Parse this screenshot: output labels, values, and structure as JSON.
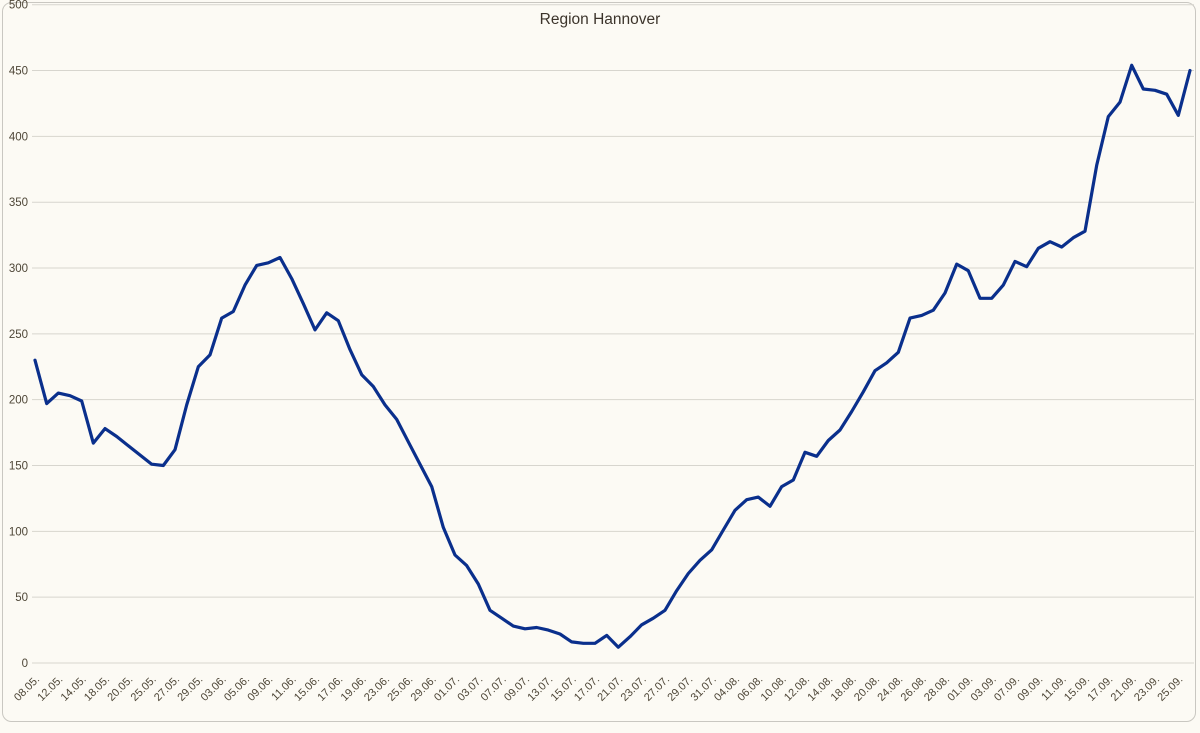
{
  "title": "Region Hannover",
  "colors": {
    "line": "#0a2f8c",
    "grid": "#d7d5ce",
    "axis_text": "#4e4637",
    "title_text": "#3c342b",
    "background": "#fcfaf4",
    "frame_border": "#c9c7c1"
  },
  "chart_data": {
    "type": "line",
    "title": "Region Hannover",
    "legend": "none",
    "grid": true,
    "ylim": [
      0,
      500
    ],
    "y_ticks": [
      0,
      50,
      100,
      150,
      200,
      250,
      300,
      350,
      400,
      450,
      500
    ],
    "x_label_every": 2,
    "x_labels": [
      "08.05.",
      "12.05.",
      "14.05.",
      "18.05.",
      "20.05.",
      "25.05.",
      "27.05.",
      "29.05.",
      "03.06.",
      "05.06.",
      "09.06.",
      "11.06.",
      "15.06.",
      "17.06.",
      "19.06.",
      "23.06.",
      "25.06.",
      "29.06.",
      "01.07.",
      "03.07.",
      "07.07.",
      "09.07.",
      "13.07.",
      "15.07.",
      "17.07.",
      "21.07.",
      "23.07.",
      "27.07.",
      "29.07.",
      "31.07.",
      "04.08.",
      "06.08.",
      "10.08.",
      "12.08.",
      "14.08.",
      "18.08.",
      "20.08.",
      "24.08.",
      "26.08.",
      "28.08.",
      "01.09.",
      "03.09.",
      "07.09.",
      "09.09.",
      "11.09.",
      "15.09.",
      "17.09.",
      "21.09.",
      "23.09.",
      "25.09."
    ],
    "values": [
      230,
      197,
      205,
      203,
      199,
      167,
      178,
      172,
      165,
      158,
      151,
      150,
      162,
      196,
      225,
      234,
      262,
      267,
      287,
      302,
      304,
      308,
      292,
      273,
      253,
      266,
      260,
      238,
      219,
      210,
      196,
      185,
      168,
      151,
      134,
      103,
      82,
      74,
      60,
      40,
      34,
      28,
      26,
      27,
      25,
      22,
      16,
      15,
      15,
      21,
      12,
      20,
      29,
      34,
      40,
      55,
      68,
      78,
      86,
      101,
      116,
      124,
      126,
      119,
      134,
      139,
      160,
      157,
      169,
      177,
      191,
      206,
      222,
      228,
      236,
      262,
      264,
      268,
      281,
      303,
      298,
      277,
      277,
      287,
      305,
      301,
      315,
      320,
      316,
      323,
      328,
      378,
      415,
      426,
      454,
      436,
      435,
      432,
      416,
      450
    ]
  }
}
